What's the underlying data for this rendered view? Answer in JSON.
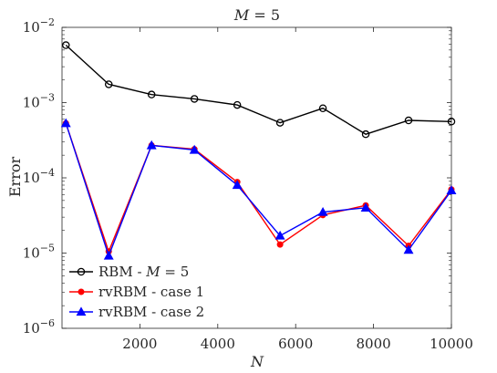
{
  "chart_data": {
    "type": "line",
    "title_prefix": "M",
    "title_suffix": " = 5",
    "xlabel": "N",
    "ylabel": "Error",
    "x_scale": "linear",
    "y_scale": "log",
    "xlim": [
      0,
      10000
    ],
    "ylim": [
      1e-06,
      0.01
    ],
    "x_ticks": [
      2000,
      4000,
      6000,
      8000,
      10000
    ],
    "y_ticks": [
      {
        "value": 1e-06,
        "base": "10",
        "exp": "−6"
      },
      {
        "value": 1e-05,
        "base": "10",
        "exp": "−5"
      },
      {
        "value": 0.0001,
        "base": "10",
        "exp": "−4"
      },
      {
        "value": 0.001,
        "base": "10",
        "exp": "−3"
      },
      {
        "value": 0.01,
        "base": "10",
        "exp": "−2"
      }
    ],
    "grid": false,
    "legend_position": "bottom-left",
    "x": [
      100,
      1200,
      2300,
      3400,
      4500,
      5600,
      6700,
      7800,
      8900,
      10000
    ],
    "series": [
      {
        "name_prefix": "RBM - ",
        "name_italic": "M",
        "name_suffix": " = 5",
        "color": "#000000",
        "marker": "circle",
        "values": [
          0.0058,
          0.00175,
          0.00128,
          0.00112,
          0.00093,
          0.00054,
          0.00084,
          0.00038,
          0.00058,
          0.00056
        ]
      },
      {
        "name_prefix": "rvRBM - case 1",
        "name_italic": "",
        "name_suffix": "",
        "color": "#ff0000",
        "marker": "dot",
        "values": [
          0.00053,
          1.05e-05,
          0.00027,
          0.00024,
          8.8e-05,
          1.3e-05,
          3.2e-05,
          4.3e-05,
          1.25e-05,
          7e-05
        ]
      },
      {
        "name_prefix": "rvRBM - case 2",
        "name_italic": "",
        "name_suffix": "",
        "color": "#0000ff",
        "marker": "triangle",
        "values": [
          0.00053,
          9.2e-06,
          0.00027,
          0.000235,
          8e-05,
          1.7e-05,
          3.5e-05,
          4e-05,
          1.1e-05,
          6.8e-05
        ]
      }
    ]
  }
}
